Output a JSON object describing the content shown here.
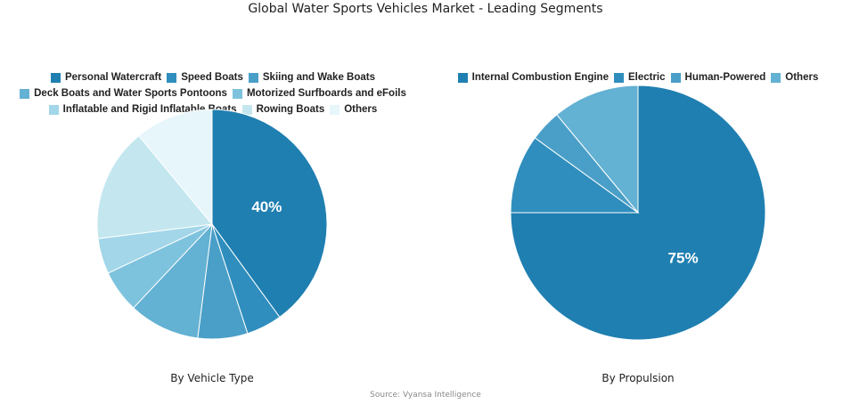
{
  "title": "Global Water Sports Vehicles Market - Leading Segments",
  "source": "Source: Vyansa Intelligence",
  "chart_data": [
    {
      "type": "pie",
      "title": "By Vehicle Type",
      "labels": [
        "Personal Watercraft",
        "Speed Boats",
        "Skiing and Wake Boats",
        "Deck Boats and Water Sports Pontoons",
        "Motorized Surfboards and eFoils",
        "Inflatable and Rigid Inflatable Boats",
        "Rowing Boats",
        "Others"
      ],
      "values": [
        40,
        5,
        7,
        10,
        6,
        5,
        16,
        11
      ],
      "colors": [
        "#1f7fb1",
        "#2f8ebd",
        "#4a9fc8",
        "#63b1d3",
        "#7ec3dd",
        "#a2d6e8",
        "#c4e7ef",
        "#e6f6fa"
      ],
      "data_labels": [
        "40%",
        "",
        "",
        "",
        "",
        "",
        "",
        ""
      ],
      "legend_rows": [
        [
          0,
          1,
          2
        ],
        [
          3,
          4
        ],
        [
          5,
          6,
          7
        ]
      ],
      "legend": "top"
    },
    {
      "type": "pie",
      "title": "By Propulsion",
      "labels": [
        "Internal Combustion Engine",
        "Electric",
        "Human-Powered",
        "Others"
      ],
      "values": [
        75,
        10,
        4,
        11
      ],
      "colors": [
        "#1f7fb1",
        "#2f8ebd",
        "#4a9fc8",
        "#63b1d3"
      ],
      "data_labels": [
        "75%",
        "",
        "",
        ""
      ],
      "legend_rows": [
        [
          0,
          1,
          2,
          3
        ]
      ],
      "legend": "top"
    }
  ]
}
